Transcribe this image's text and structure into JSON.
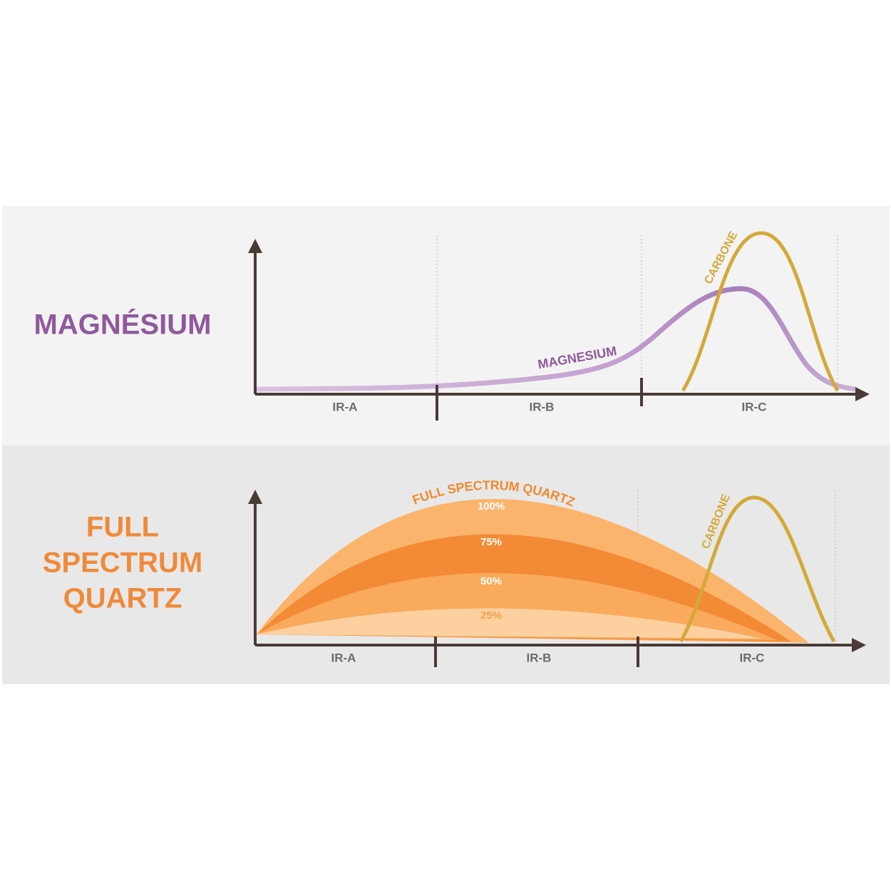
{
  "panels": [
    {
      "title": [
        "MAGNÉSIUM"
      ],
      "curve_label": "MAGNESIUM",
      "carbone_label": "CARBONE",
      "bands": [
        "IR-A",
        "IR-B",
        "IR-C"
      ]
    },
    {
      "title": [
        "FULL",
        "SPECTRUM",
        "QUARTZ"
      ],
      "curve_label": "FULL SPECTRUM QUARTZ",
      "levels": [
        "100%",
        "75%",
        "50%",
        "25%"
      ],
      "carbone_label": "CARBONE",
      "bands": [
        "IR-A",
        "IR-B",
        "IR-C"
      ]
    }
  ]
}
